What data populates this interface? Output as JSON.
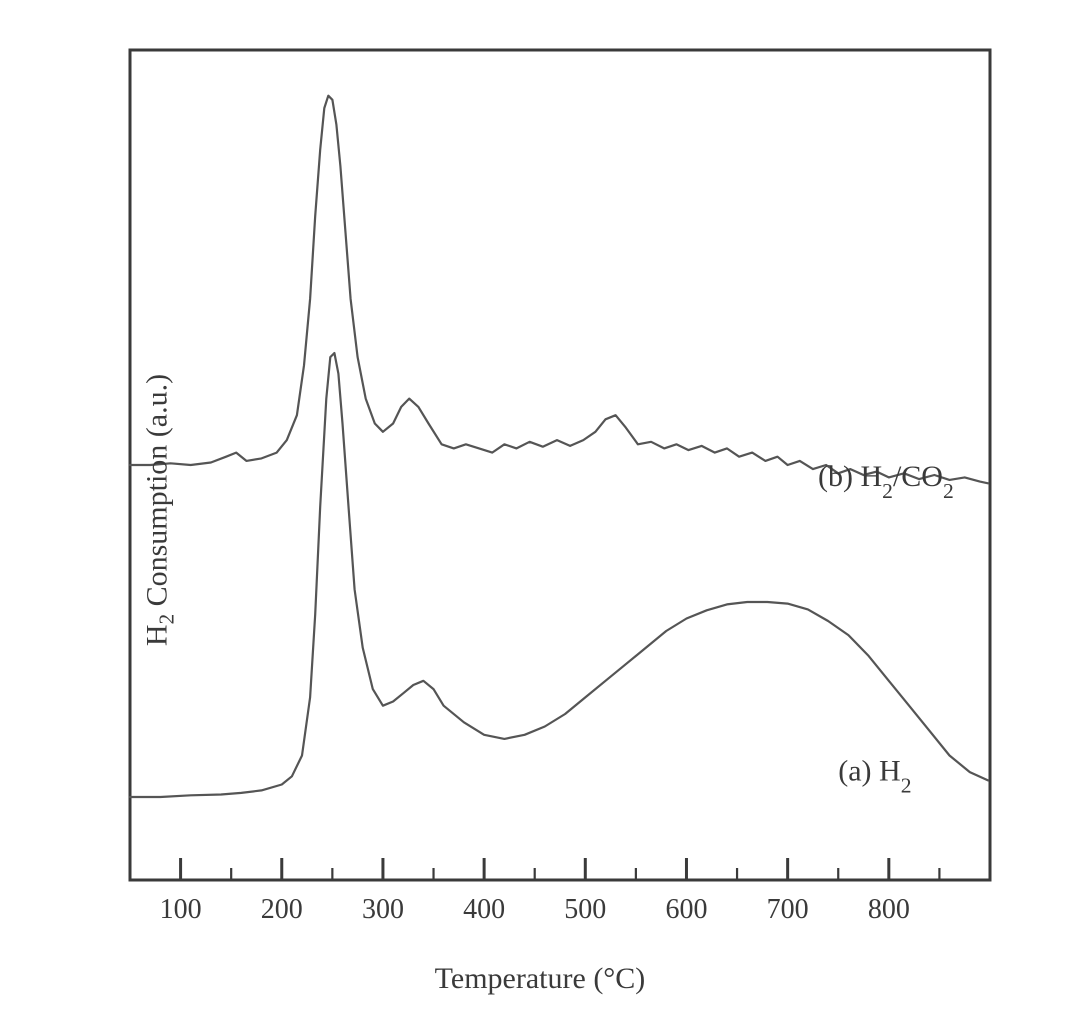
{
  "chart": {
    "type": "line",
    "background_color": "#ffffff",
    "border_color": "#3a3a3a",
    "border_width": 3,
    "line_color": "#555555",
    "line_width": 2.2,
    "xlabel_plain": "Temperature (°C)",
    "ylabel_plain": "H2 Consumption (a.u.)",
    "x": {
      "min": 50,
      "max": 900,
      "ticks": [
        100,
        200,
        300,
        400,
        500,
        600,
        700,
        800
      ],
      "minor_step": 50
    },
    "y": {
      "min": 0,
      "max": 100,
      "show_ticks": false
    },
    "series": [
      {
        "id": "a",
        "label_plain": "(a) H2",
        "label_xy": [
          750,
          12
        ],
        "points": [
          [
            50,
            10
          ],
          [
            80,
            10
          ],
          [
            110,
            10.2
          ],
          [
            140,
            10.3
          ],
          [
            160,
            10.5
          ],
          [
            180,
            10.8
          ],
          [
            200,
            11.5
          ],
          [
            210,
            12.5
          ],
          [
            220,
            15
          ],
          [
            228,
            22
          ],
          [
            233,
            32
          ],
          [
            238,
            45
          ],
          [
            244,
            58
          ],
          [
            248,
            63
          ],
          [
            252,
            63.5
          ],
          [
            256,
            61
          ],
          [
            260,
            55
          ],
          [
            266,
            45
          ],
          [
            272,
            35
          ],
          [
            280,
            28
          ],
          [
            290,
            23
          ],
          [
            300,
            21
          ],
          [
            310,
            21.5
          ],
          [
            320,
            22.5
          ],
          [
            330,
            23.5
          ],
          [
            340,
            24
          ],
          [
            350,
            23
          ],
          [
            360,
            21
          ],
          [
            380,
            19
          ],
          [
            400,
            17.5
          ],
          [
            420,
            17
          ],
          [
            440,
            17.5
          ],
          [
            460,
            18.5
          ],
          [
            480,
            20
          ],
          [
            500,
            22
          ],
          [
            520,
            24
          ],
          [
            540,
            26
          ],
          [
            560,
            28
          ],
          [
            580,
            30
          ],
          [
            600,
            31.5
          ],
          [
            620,
            32.5
          ],
          [
            640,
            33.2
          ],
          [
            660,
            33.5
          ],
          [
            680,
            33.5
          ],
          [
            700,
            33.3
          ],
          [
            720,
            32.6
          ],
          [
            740,
            31.2
          ],
          [
            760,
            29.5
          ],
          [
            780,
            27
          ],
          [
            800,
            24
          ],
          [
            820,
            21
          ],
          [
            840,
            18
          ],
          [
            860,
            15
          ],
          [
            880,
            13
          ],
          [
            898,
            12
          ]
        ]
      },
      {
        "id": "b",
        "label_plain": "(b) H2/CO2",
        "label_xy": [
          730,
          47.5
        ],
        "points": [
          [
            50,
            50
          ],
          [
            70,
            50
          ],
          [
            90,
            50.2
          ],
          [
            110,
            50
          ],
          [
            130,
            50.3
          ],
          [
            145,
            51
          ],
          [
            155,
            51.5
          ],
          [
            165,
            50.5
          ],
          [
            180,
            50.8
          ],
          [
            195,
            51.5
          ],
          [
            205,
            53
          ],
          [
            215,
            56
          ],
          [
            222,
            62
          ],
          [
            228,
            70
          ],
          [
            233,
            80
          ],
          [
            238,
            88
          ],
          [
            242,
            93
          ],
          [
            246,
            94.5
          ],
          [
            250,
            94
          ],
          [
            254,
            91
          ],
          [
            258,
            86
          ],
          [
            263,
            78
          ],
          [
            268,
            70
          ],
          [
            275,
            63
          ],
          [
            283,
            58
          ],
          [
            292,
            55
          ],
          [
            300,
            54
          ],
          [
            310,
            55
          ],
          [
            318,
            57
          ],
          [
            326,
            58
          ],
          [
            335,
            57
          ],
          [
            345,
            55
          ],
          [
            358,
            52.5
          ],
          [
            370,
            52
          ],
          [
            382,
            52.5
          ],
          [
            395,
            52
          ],
          [
            408,
            51.5
          ],
          [
            420,
            52.5
          ],
          [
            432,
            52
          ],
          [
            445,
            52.8
          ],
          [
            458,
            52.2
          ],
          [
            472,
            53
          ],
          [
            485,
            52.3
          ],
          [
            498,
            53
          ],
          [
            510,
            54
          ],
          [
            520,
            55.5
          ],
          [
            530,
            56
          ],
          [
            540,
            54.5
          ],
          [
            552,
            52.5
          ],
          [
            565,
            52.8
          ],
          [
            578,
            52
          ],
          [
            590,
            52.5
          ],
          [
            602,
            51.8
          ],
          [
            615,
            52.3
          ],
          [
            628,
            51.5
          ],
          [
            640,
            52
          ],
          [
            652,
            51
          ],
          [
            665,
            51.5
          ],
          [
            678,
            50.5
          ],
          [
            690,
            51
          ],
          [
            700,
            50
          ],
          [
            712,
            50.5
          ],
          [
            725,
            49.5
          ],
          [
            738,
            50
          ],
          [
            750,
            49
          ],
          [
            762,
            49.5
          ],
          [
            775,
            48.8
          ],
          [
            788,
            49.2
          ],
          [
            800,
            48.5
          ],
          [
            815,
            49
          ],
          [
            830,
            48.3
          ],
          [
            845,
            48.8
          ],
          [
            860,
            48.2
          ],
          [
            875,
            48.5
          ],
          [
            890,
            48
          ],
          [
            898,
            47.8
          ]
        ]
      }
    ]
  }
}
